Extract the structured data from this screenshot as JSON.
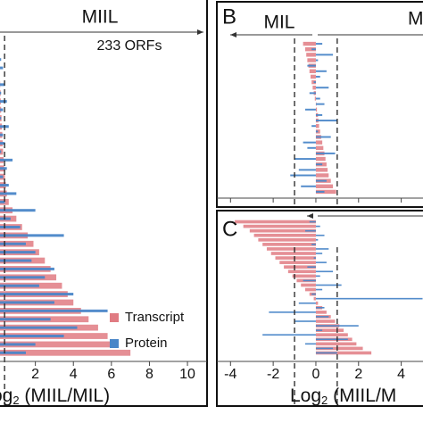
{
  "chart_data": [
    {
      "type": "bar",
      "orientation": "horizontal",
      "annotations": [
        "MIIL",
        "233 ORFs"
      ],
      "xlabel": {
        "main": "og",
        "sub": "2",
        "rest": " (MIIL/MIL)"
      },
      "xlim": [
        0.14,
        11.03
      ],
      "xticks": [
        2,
        4,
        6,
        8,
        10
      ],
      "show_tick_labels": true,
      "reference_lines": [
        0.38
      ],
      "legend": "lower right",
      "series": [
        {
          "name": "Transcript",
          "color": "#e07b82",
          "values": [
            0.1,
            0.12,
            0.14,
            0.15,
            0.17,
            0.18,
            0.2,
            0.22,
            0.24,
            0.26,
            0.28,
            0.3,
            0.33,
            0.36,
            0.4,
            0.45,
            0.5,
            0.6,
            0.8,
            1.0,
            1.3,
            1.6,
            1.9,
            2.2,
            2.5,
            2.8,
            3.1,
            3.4,
            3.7,
            4.0,
            4.4,
            4.8,
            5.3,
            5.8,
            6.3,
            7.0
          ]
        },
        {
          "name": "Protein",
          "color": "#4a86c8",
          "values": [
            0.2,
            0.3,
            0.1,
            0.4,
            0.2,
            0.5,
            0.3,
            0.2,
            0.6,
            0.3,
            0.4,
            0.2,
            0.8,
            0.5,
            0.3,
            0.6,
            1.0,
            0.4,
            2.0,
            0.7,
            1.2,
            3.5,
            1.5,
            2.0,
            1.8,
            3.0,
            2.5,
            2.2,
            4.0,
            3.0,
            5.8,
            2.8,
            4.2,
            3.5,
            2.0,
            1.5
          ]
        }
      ]
    },
    {
      "type": "bar",
      "orientation": "horizontal",
      "label": "B",
      "annotations": [
        "MIL",
        "M"
      ],
      "xlim": [
        -4.64,
        5.02
      ],
      "xticks": [
        -4,
        -2,
        0,
        2,
        4
      ],
      "show_tick_labels": false,
      "reference_lines": [
        -1,
        1
      ],
      "series": [
        {
          "color": "#e07b82",
          "values": [
            -0.6,
            -0.5,
            -0.45,
            -0.4,
            -0.35,
            -0.3,
            -0.25,
            -0.2,
            -0.15,
            -0.1,
            -0.05,
            0,
            0.05,
            0.1,
            0.12,
            0.15,
            0.2,
            0.25,
            0.3,
            0.35,
            0.4,
            0.45,
            0.5,
            0.55,
            0.6,
            0.7,
            0.8,
            0.95
          ]
        },
        {
          "color": "#4a86c8",
          "values": [
            0.3,
            -0.2,
            0.8,
            0.1,
            -0.4,
            0.5,
            0.2,
            -0.1,
            0.6,
            -0.3,
            0.2,
            0.4,
            -0.5,
            0.3,
            1.0,
            -0.2,
            0.1,
            0.7,
            -0.6,
            -0.4,
            0.9,
            -1.0,
            0.3,
            -0.8,
            -1.2,
            0.5,
            -0.7,
            0.4
          ]
        }
      ]
    },
    {
      "type": "bar",
      "orientation": "horizontal",
      "label": "C",
      "xlabel": {
        "main": "Log",
        "sub": "2",
        "rest": " (MIIL/M"
      },
      "xlim": [
        -4.64,
        5.02
      ],
      "xticks": [
        -4,
        -2,
        0,
        2,
        4
      ],
      "show_tick_labels": true,
      "reference_lines": [
        -1,
        1
      ],
      "series": [
        {
          "color": "#e07b82",
          "values": [
            -3.8,
            -3.4,
            -3.1,
            -2.9,
            -2.7,
            -2.5,
            -2.3,
            -2.1,
            -1.9,
            -1.7,
            -1.5,
            -1.3,
            -1.1,
            -0.9,
            -0.7,
            -0.5,
            -0.3,
            -0.1,
            0.1,
            0.3,
            0.5,
            0.7,
            0.9,
            1.1,
            1.3,
            1.5,
            1.7,
            1.9,
            2.2,
            2.6
          ]
        },
        {
          "color": "#4a86c8",
          "values": [
            -0.3,
            0.2,
            -0.5,
            0.4,
            0.1,
            -0.2,
            0.6,
            0.3,
            -0.1,
            0.5,
            -0.4,
            0.8,
            0.2,
            -0.6,
            1.2,
            0.3,
            -0.2,
            5.0,
            -0.8,
            0.4,
            -2.2,
            0.6,
            -1.0,
            2.0,
            0.3,
            -2.5,
            1.5,
            -0.5,
            0.8,
            1.0
          ]
        }
      ]
    }
  ]
}
